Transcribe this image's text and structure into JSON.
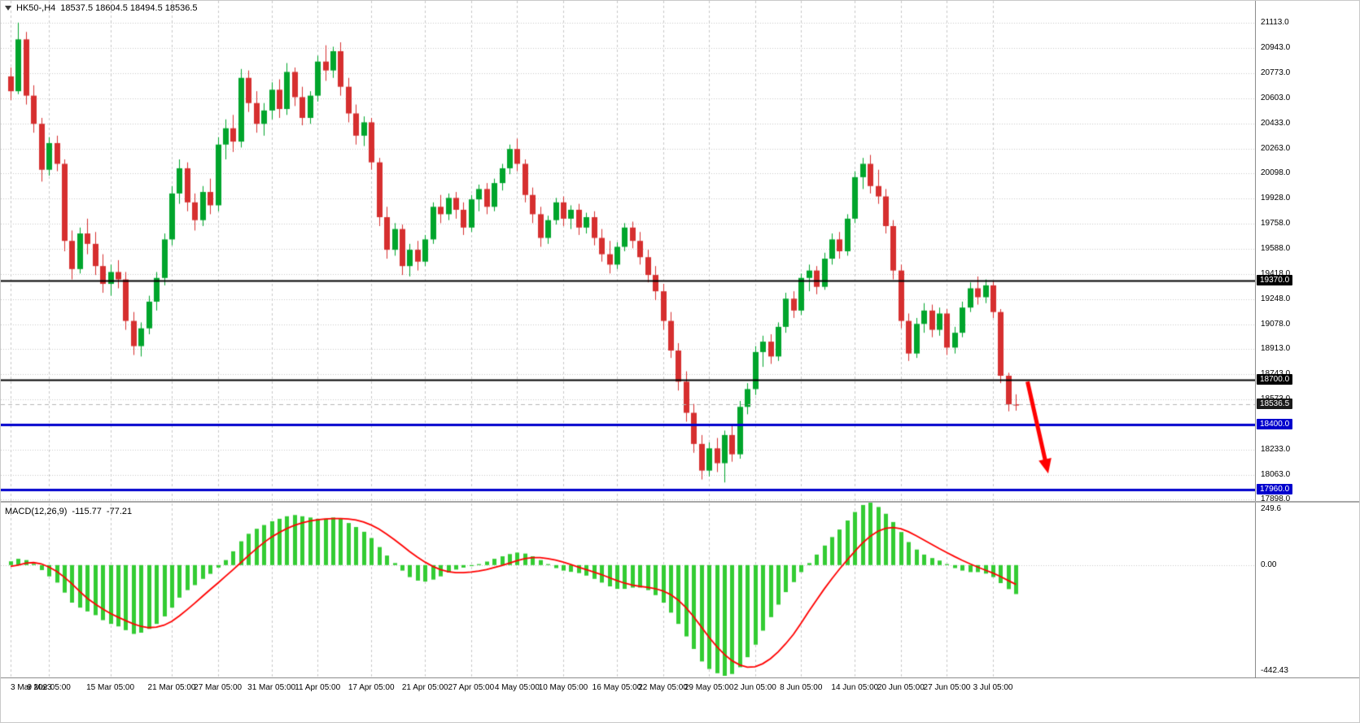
{
  "title": {
    "symbol": "HK50-,H4",
    "ohlc": "18537.5 18604.5 18494.5 18536.5"
  },
  "colors": {
    "bull": "#00a52c",
    "bear": "#d62f2f",
    "grid": "#c8c8c8",
    "macd_hist": "#33cc33",
    "macd_signal": "#ff0000",
    "level_black": "#000000",
    "level_blue": "#0000cd",
    "arrow": "#ff0000",
    "current_price_line": "#b5b5b5"
  },
  "price_axis": {
    "badges": [
      {
        "name": "level-badge",
        "label": "19370.0",
        "value": 19370,
        "bg": "#000000"
      },
      {
        "name": "level-badge",
        "label": "18700.0",
        "value": 18700,
        "bg": "#000000"
      },
      {
        "name": "current-price-badge",
        "label": "18536.5",
        "value": 18536.5,
        "bg": "#1a1a1a"
      },
      {
        "name": "level-badge",
        "label": "18400.0",
        "value": 18400,
        "bg": "#0000cd"
      },
      {
        "name": "level-badge",
        "label": "17960.0",
        "value": 17960,
        "bg": "#0000cd"
      }
    ]
  },
  "macd_axis": {
    "top_label": "249.6",
    "zero_label": "0.00",
    "bottom_label": "-442.43"
  },
  "chart_data": {
    "type": "candlestick",
    "title": "HK50-,H4",
    "timeframe": "H4",
    "current_bar": {
      "open": 18537.5,
      "high": 18604.5,
      "low": 18494.5,
      "close": 18536.5
    },
    "current_price": 18536.5,
    "y_range": {
      "top": 21260,
      "bottom": 17885
    },
    "y_ticks": [
      {
        "label": "21113.0",
        "value": 21113
      },
      {
        "label": "20943.0",
        "value": 20943
      },
      {
        "label": "20773.0",
        "value": 20773
      },
      {
        "label": "20603.0",
        "value": 20603
      },
      {
        "label": "20433.0",
        "value": 20433
      },
      {
        "label": "20263.0",
        "value": 20263
      },
      {
        "label": "20098.0",
        "value": 20098
      },
      {
        "label": "19928.0",
        "value": 19928
      },
      {
        "label": "19758.0",
        "value": 19758
      },
      {
        "label": "19588.0",
        "value": 19588
      },
      {
        "label": "19418.0",
        "value": 19418
      },
      {
        "label": "19248.0",
        "value": 19248
      },
      {
        "label": "19078.0",
        "value": 19078
      },
      {
        "label": "18913.0",
        "value": 18913
      },
      {
        "label": "18743.0",
        "value": 18743
      },
      {
        "label": "18573.0",
        "value": 18573
      },
      {
        "label": "18233.0",
        "value": 18233
      },
      {
        "label": "18063.0",
        "value": 18063
      },
      {
        "label": "17898.0",
        "value": 17898
      }
    ],
    "x_labels": [
      {
        "label": "3 Mar 2023",
        "index": 0
      },
      {
        "label": "9 Mar 05:00",
        "index": 5
      },
      {
        "label": "15 Mar 05:00",
        "index": 13
      },
      {
        "label": "21 Mar 05:00",
        "index": 21
      },
      {
        "label": "27 Mar 05:00",
        "index": 27
      },
      {
        "label": "31 Mar 05:00",
        "index": 34
      },
      {
        "label": "11 Apr 05:00",
        "index": 40
      },
      {
        "label": "17 Apr 05:00",
        "index": 47
      },
      {
        "label": "21 Apr 05:00",
        "index": 54
      },
      {
        "label": "27 Apr 05:00",
        "index": 60
      },
      {
        "label": "4 May 05:00",
        "index": 66
      },
      {
        "label": "10 May 05:00",
        "index": 72
      },
      {
        "label": "16 May 05:00",
        "index": 79
      },
      {
        "label": "22 May 05:00",
        "index": 85
      },
      {
        "label": "29 May 05:00",
        "index": 91
      },
      {
        "label": "2 Jun 05:00",
        "index": 97
      },
      {
        "label": "8 Jun 05:00",
        "index": 103
      },
      {
        "label": "14 Jun 05:00",
        "index": 110
      },
      {
        "label": "20 Jun 05:00",
        "index": 116
      },
      {
        "label": "27 Jun 05:00",
        "index": 122
      },
      {
        "label": "3 Jul 05:00",
        "index": 128
      }
    ],
    "levels": [
      {
        "value": 19370,
        "color": "#000000",
        "width": 2
      },
      {
        "value": 18700,
        "color": "#000000",
        "width": 2
      },
      {
        "value": 18400,
        "color": "#0000cd",
        "width": 3
      },
      {
        "value": 17960,
        "color": "#0000cd",
        "width": 3
      }
    ],
    "annotation_arrow": {
      "x1_index": 132.5,
      "y1_price": 18690,
      "x2_index": 135.2,
      "y2_price": 18070
    },
    "candles": [
      [
        20750,
        20810,
        20590,
        20650
      ],
      [
        20650,
        21113,
        20630,
        21000
      ],
      [
        21000,
        21050,
        20560,
        20620
      ],
      [
        20620,
        20690,
        20370,
        20430
      ],
      [
        20430,
        20470,
        20040,
        20120
      ],
      [
        20120,
        20340,
        20080,
        20300
      ],
      [
        20300,
        20350,
        20110,
        20160
      ],
      [
        20160,
        20190,
        19570,
        19640
      ],
      [
        19640,
        19710,
        19380,
        19450
      ],
      [
        19450,
        19730,
        19420,
        19690
      ],
      [
        19690,
        19790,
        19550,
        19620
      ],
      [
        19620,
        19700,
        19410,
        19470
      ],
      [
        19470,
        19550,
        19290,
        19350
      ],
      [
        19350,
        19480,
        19270,
        19430
      ],
      [
        19430,
        19510,
        19320,
        19380
      ],
      [
        19380,
        19430,
        19040,
        19100
      ],
      [
        19100,
        19160,
        18870,
        18930
      ],
      [
        18930,
        19090,
        18860,
        19050
      ],
      [
        19050,
        19270,
        19010,
        19230
      ],
      [
        19230,
        19430,
        19170,
        19390
      ],
      [
        19390,
        19690,
        19340,
        19650
      ],
      [
        19650,
        20010,
        19610,
        19960
      ],
      [
        19960,
        20190,
        19890,
        20130
      ],
      [
        20130,
        20170,
        19840,
        19900
      ],
      [
        19900,
        19960,
        19710,
        19780
      ],
      [
        19780,
        20010,
        19740,
        19970
      ],
      [
        19970,
        20060,
        19820,
        19880
      ],
      [
        19880,
        20340,
        19840,
        20290
      ],
      [
        20290,
        20460,
        20190,
        20400
      ],
      [
        20400,
        20490,
        20240,
        20310
      ],
      [
        20310,
        20800,
        20270,
        20740
      ],
      [
        20740,
        20790,
        20510,
        20570
      ],
      [
        20570,
        20650,
        20370,
        20430
      ],
      [
        20430,
        20570,
        20350,
        20520
      ],
      [
        20520,
        20710,
        20460,
        20660
      ],
      [
        20660,
        20730,
        20470,
        20530
      ],
      [
        20530,
        20840,
        20490,
        20780
      ],
      [
        20780,
        20810,
        20550,
        20610
      ],
      [
        20610,
        20680,
        20420,
        20470
      ],
      [
        20470,
        20650,
        20430,
        20620
      ],
      [
        20620,
        20890,
        20580,
        20850
      ],
      [
        20850,
        20960,
        20720,
        20790
      ],
      [
        20790,
        20950,
        20740,
        20920
      ],
      [
        20920,
        20980,
        20620,
        20680
      ],
      [
        20680,
        20740,
        20440,
        20500
      ],
      [
        20500,
        20560,
        20290,
        20350
      ],
      [
        20350,
        20480,
        20280,
        20440
      ],
      [
        20440,
        20470,
        20120,
        20170
      ],
      [
        20170,
        20200,
        19740,
        19800
      ],
      [
        19800,
        19870,
        19520,
        19580
      ],
      [
        19580,
        19760,
        19540,
        19720
      ],
      [
        19720,
        19750,
        19410,
        19470
      ],
      [
        19470,
        19620,
        19400,
        19580
      ],
      [
        19580,
        19640,
        19440,
        19500
      ],
      [
        19500,
        19680,
        19470,
        19650
      ],
      [
        19650,
        19900,
        19620,
        19870
      ],
      [
        19870,
        19950,
        19760,
        19820
      ],
      [
        19820,
        19960,
        19780,
        19930
      ],
      [
        19930,
        19970,
        19790,
        19850
      ],
      [
        19850,
        19900,
        19680,
        19730
      ],
      [
        19730,
        19950,
        19700,
        19920
      ],
      [
        19920,
        20020,
        19840,
        19990
      ],
      [
        19990,
        20030,
        19820,
        19870
      ],
      [
        19870,
        20060,
        19840,
        20030
      ],
      [
        20030,
        20160,
        19980,
        20130
      ],
      [
        20130,
        20290,
        20090,
        20260
      ],
      [
        20260,
        20330,
        20110,
        20160
      ],
      [
        20160,
        20190,
        19900,
        19950
      ],
      [
        19950,
        20000,
        19760,
        19820
      ],
      [
        19820,
        19870,
        19600,
        19660
      ],
      [
        19660,
        19810,
        19620,
        19780
      ],
      [
        19780,
        19930,
        19750,
        19900
      ],
      [
        19900,
        19940,
        19740,
        19790
      ],
      [
        19790,
        19880,
        19720,
        19850
      ],
      [
        19850,
        19890,
        19680,
        19730
      ],
      [
        19730,
        19830,
        19690,
        19800
      ],
      [
        19800,
        19840,
        19610,
        19660
      ],
      [
        19660,
        19720,
        19500,
        19550
      ],
      [
        19550,
        19640,
        19420,
        19480
      ],
      [
        19480,
        19630,
        19450,
        19600
      ],
      [
        19600,
        19760,
        19570,
        19730
      ],
      [
        19730,
        19770,
        19590,
        19640
      ],
      [
        19640,
        19700,
        19480,
        19530
      ],
      [
        19530,
        19580,
        19360,
        19410
      ],
      [
        19410,
        19470,
        19240,
        19300
      ],
      [
        19300,
        19350,
        19040,
        19100
      ],
      [
        19100,
        19160,
        18850,
        18900
      ],
      [
        18900,
        18950,
        18630,
        18690
      ],
      [
        18690,
        18760,
        18420,
        18480
      ],
      [
        18480,
        18540,
        18210,
        18270
      ],
      [
        18270,
        18330,
        18030,
        18090
      ],
      [
        18090,
        18280,
        18050,
        18240
      ],
      [
        18240,
        18310,
        18080,
        18140
      ],
      [
        18140,
        18360,
        18010,
        18330
      ],
      [
        18330,
        18400,
        18150,
        18200
      ],
      [
        18200,
        18560,
        18170,
        18520
      ],
      [
        18520,
        18680,
        18470,
        18640
      ],
      [
        18640,
        18930,
        18600,
        18890
      ],
      [
        18890,
        19000,
        18790,
        18960
      ],
      [
        18960,
        19010,
        18810,
        18860
      ],
      [
        18860,
        19090,
        18830,
        19060
      ],
      [
        19060,
        19290,
        19020,
        19250
      ],
      [
        19250,
        19300,
        19120,
        19170
      ],
      [
        19170,
        19420,
        19140,
        19390
      ],
      [
        19390,
        19480,
        19300,
        19440
      ],
      [
        19440,
        19470,
        19280,
        19330
      ],
      [
        19330,
        19560,
        19310,
        19520
      ],
      [
        19520,
        19690,
        19480,
        19650
      ],
      [
        19650,
        19700,
        19520,
        19570
      ],
      [
        19570,
        19820,
        19540,
        19790
      ],
      [
        19790,
        20110,
        19760,
        20070
      ],
      [
        20070,
        20200,
        19990,
        20160
      ],
      [
        20160,
        20220,
        19960,
        20010
      ],
      [
        20010,
        20120,
        19890,
        19940
      ],
      [
        19940,
        19990,
        19690,
        19740
      ],
      [
        19740,
        19780,
        19380,
        19440
      ],
      [
        19440,
        19480,
        19050,
        19100
      ],
      [
        19100,
        19150,
        18830,
        18880
      ],
      [
        18880,
        19120,
        18850,
        19080
      ],
      [
        19080,
        19220,
        19020,
        19170
      ],
      [
        19170,
        19210,
        18990,
        19040
      ],
      [
        19040,
        19190,
        19000,
        19150
      ],
      [
        19150,
        19180,
        18870,
        18920
      ],
      [
        18920,
        19060,
        18880,
        19020
      ],
      [
        19020,
        19230,
        18990,
        19190
      ],
      [
        19190,
        19360,
        19160,
        19320
      ],
      [
        19320,
        19400,
        19210,
        19260
      ],
      [
        19260,
        19380,
        19220,
        19340
      ],
      [
        19340,
        19370,
        19120,
        19160
      ],
      [
        19160,
        19180,
        18680,
        18730
      ],
      [
        18730,
        18750,
        18490,
        18537.5
      ],
      [
        18537.5,
        18604.5,
        18494.5,
        18536.5
      ]
    ],
    "macd": {
      "label": "MACD(12,26,9)",
      "main_display": "-115.77",
      "signal_display": "-77.21",
      "main_value": -115.77,
      "signal_value": -77.21,
      "range": {
        "max": 249.6,
        "min": -442.43
      },
      "histogram": [
        15,
        25,
        20,
        5,
        -20,
        -45,
        -70,
        -110,
        -150,
        -170,
        -185,
        -200,
        -220,
        -235,
        -245,
        -260,
        -275,
        -270,
        -255,
        -235,
        -205,
        -170,
        -130,
        -100,
        -80,
        -55,
        -35,
        -10,
        20,
        55,
        95,
        125,
        145,
        160,
        175,
        185,
        195,
        200,
        195,
        190,
        185,
        185,
        190,
        185,
        168,
        152,
        133,
        108,
        72,
        38,
        8,
        -22,
        -48,
        -62,
        -66,
        -58,
        -45,
        -30,
        -18,
        -10,
        -4,
        4,
        14,
        25,
        35,
        44,
        50,
        46,
        35,
        20,
        4,
        -12,
        -22,
        -27,
        -32,
        -42,
        -55,
        -70,
        -85,
        -95,
        -95,
        -90,
        -90,
        -100,
        -120,
        -150,
        -190,
        -235,
        -285,
        -335,
        -385,
        -415,
        -432,
        -442.43,
        -435,
        -408,
        -368,
        -318,
        -262,
        -208,
        -158,
        -108,
        -68,
        -28,
        8,
        42,
        78,
        112,
        142,
        178,
        212,
        240,
        249.6,
        232,
        205,
        172,
        132,
        92,
        62,
        42,
        28,
        18,
        4,
        -12,
        -22,
        -28,
        -28,
        -34,
        -48,
        -72,
        -96,
        -115.77
      ],
      "signal": [
        -5,
        0,
        8,
        10,
        5,
        -8,
        -25,
        -48,
        -75,
        -105,
        -133,
        -155,
        -175,
        -193,
        -208,
        -222,
        -235,
        -245,
        -250,
        -248,
        -240,
        -225,
        -203,
        -178,
        -152,
        -125,
        -98,
        -72,
        -45,
        -18,
        10,
        38,
        65,
        90,
        112,
        130,
        146,
        159,
        169,
        176,
        181,
        184,
        186,
        186,
        184,
        180,
        172,
        160,
        144,
        124,
        102,
        78,
        54,
        32,
        12,
        -5,
        -18,
        -26,
        -30,
        -30,
        -28,
        -24,
        -18,
        -10,
        -2,
        8,
        18,
        26,
        30,
        30,
        26,
        20,
        12,
        2,
        -8,
        -18,
        -28,
        -38,
        -50,
        -62,
        -72,
        -80,
        -85,
        -89,
        -94,
        -103,
        -118,
        -140,
        -170,
        -206,
        -247,
        -288,
        -325,
        -357,
        -382,
        -399,
        -408,
        -406,
        -394,
        -374,
        -347,
        -314,
        -277,
        -232,
        -185,
        -140,
        -96,
        -55,
        -16,
        20,
        55,
        88,
        115,
        135,
        147,
        150,
        145,
        133,
        117,
        100,
        83,
        66,
        50,
        34,
        19,
        5,
        -8,
        -20,
        -32,
        -46,
        -62,
        -77.21
      ]
    }
  }
}
